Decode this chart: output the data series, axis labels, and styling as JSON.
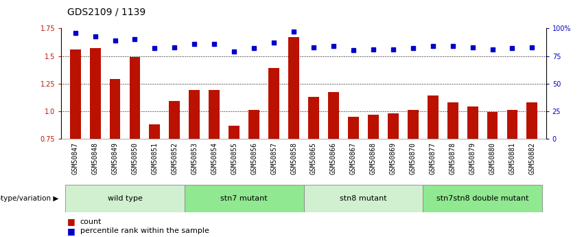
{
  "title": "GDS2109 / 1139",
  "samples": [
    "GSM50847",
    "GSM50848",
    "GSM50849",
    "GSM50850",
    "GSM50851",
    "GSM50852",
    "GSM50853",
    "GSM50854",
    "GSM50855",
    "GSM50856",
    "GSM50857",
    "GSM50858",
    "GSM50865",
    "GSM50866",
    "GSM50867",
    "GSM50868",
    "GSM50869",
    "GSM50870",
    "GSM50877",
    "GSM50878",
    "GSM50879",
    "GSM50880",
    "GSM50881",
    "GSM50882"
  ],
  "count_values": [
    1.56,
    1.57,
    1.29,
    1.49,
    0.88,
    1.09,
    1.19,
    1.19,
    0.87,
    1.01,
    1.39,
    1.67,
    1.13,
    1.17,
    0.95,
    0.97,
    0.98,
    1.01,
    1.14,
    1.08,
    1.04,
    0.99,
    1.01,
    1.08
  ],
  "percentile_values": [
    96,
    93,
    89,
    90,
    82,
    83,
    86,
    86,
    79,
    82,
    87,
    97,
    83,
    84,
    80,
    81,
    81,
    82,
    84,
    84,
    83,
    81,
    82,
    83
  ],
  "groups": [
    {
      "label": "wild type",
      "start": 0,
      "end": 6,
      "color": "#d0f0d0"
    },
    {
      "label": "stn7 mutant",
      "start": 6,
      "end": 12,
      "color": "#90e890"
    },
    {
      "label": "stn8 mutant",
      "start": 12,
      "end": 18,
      "color": "#d0f0d0"
    },
    {
      "label": "stn7stn8 double mutant",
      "start": 18,
      "end": 24,
      "color": "#90e890"
    }
  ],
  "bar_color": "#bb1100",
  "dot_color": "#0000cc",
  "left_ylim": [
    0.75,
    1.75
  ],
  "left_yticks": [
    0.75,
    1.0,
    1.25,
    1.5,
    1.75
  ],
  "right_ylim_vals": [
    0,
    25,
    50,
    75,
    100
  ],
  "right_ylim_labels": [
    "0",
    "25",
    "50",
    "75",
    "100%"
  ],
  "hgrid_vals": [
    1.0,
    1.25,
    1.5
  ],
  "xlabel_label": "genotype/variation",
  "legend_items": [
    {
      "color": "#bb1100",
      "label": "count"
    },
    {
      "color": "#0000cc",
      "label": "percentile rank within the sample"
    }
  ],
  "sample_bg": "#cccccc",
  "title_fontsize": 10,
  "tick_fontsize": 7,
  "group_fontsize": 8,
  "legend_fontsize": 8
}
